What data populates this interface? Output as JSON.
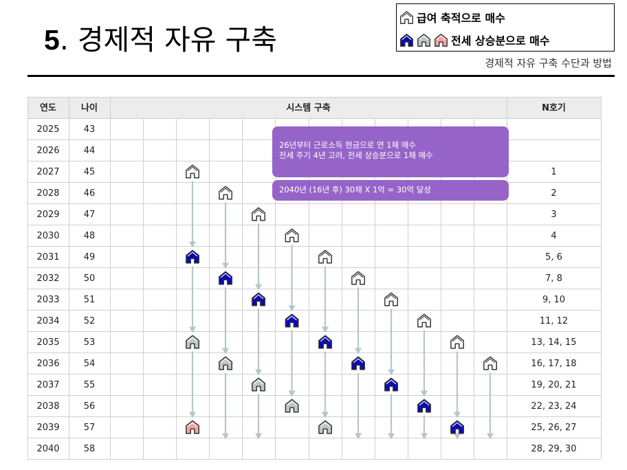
{
  "title": {
    "number": "5",
    "dot": ".",
    "text": " 경제적 자유 구축"
  },
  "subtitle": "경제적 자유 구축 수단과 방법",
  "legend": {
    "row1": {
      "label": "급여 축적으로 매수",
      "icons": [
        "house-outline-icon"
      ]
    },
    "row2": {
      "label": "전세 상승분으로 매수",
      "icons": [
        "house-blue-icon",
        "house-gray-icon",
        "house-pink-icon"
      ]
    }
  },
  "colors": {
    "blue": "#0a0ab4",
    "gray": "#bcc8c8",
    "pink": "#f0a5a5",
    "arrow": "#b5c7c7",
    "grid": "#cfcfcf",
    "header_bg": "#ececec",
    "callout": "#9664c8"
  },
  "table": {
    "headers": {
      "year": "연도",
      "age": "나이",
      "system": "시스템 구축",
      "n": "N호기"
    },
    "rows": [
      {
        "year": "2025",
        "age": "43",
        "n": ""
      },
      {
        "year": "2026",
        "age": "44",
        "n": ""
      },
      {
        "year": "2027",
        "age": "45",
        "n": "1"
      },
      {
        "year": "2028",
        "age": "46",
        "n": "2"
      },
      {
        "year": "2029",
        "age": "47",
        "n": "3"
      },
      {
        "year": "2030",
        "age": "48",
        "n": "4"
      },
      {
        "year": "2031",
        "age": "49",
        "n": "5, 6"
      },
      {
        "year": "2032",
        "age": "50",
        "n": "7, 8"
      },
      {
        "year": "2033",
        "age": "51",
        "n": "9, 10"
      },
      {
        "year": "2034",
        "age": "52",
        "n": "11, 12"
      },
      {
        "year": "2035",
        "age": "53",
        "n": "13, 14, 15"
      },
      {
        "year": "2036",
        "age": "54",
        "n": "16, 17, 18"
      },
      {
        "year": "2037",
        "age": "55",
        "n": "19, 20, 21"
      },
      {
        "year": "2038",
        "age": "56",
        "n": "22, 23, 24"
      },
      {
        "year": "2039",
        "age": "57",
        "n": "25, 26, 27"
      },
      {
        "year": "2040",
        "age": "58",
        "n": "28, 29, 30"
      }
    ]
  },
  "houses": [
    {
      "col": 2,
      "row": 2,
      "type": "outline"
    },
    {
      "col": 3,
      "row": 3,
      "type": "outline"
    },
    {
      "col": 4,
      "row": 4,
      "type": "outline"
    },
    {
      "col": 5,
      "row": 5,
      "type": "outline"
    },
    {
      "col": 2,
      "row": 6,
      "type": "blue"
    },
    {
      "col": 6,
      "row": 6,
      "type": "outline"
    },
    {
      "col": 3,
      "row": 7,
      "type": "blue"
    },
    {
      "col": 7,
      "row": 7,
      "type": "outline"
    },
    {
      "col": 4,
      "row": 8,
      "type": "blue"
    },
    {
      "col": 8,
      "row": 8,
      "type": "outline"
    },
    {
      "col": 5,
      "row": 9,
      "type": "blue"
    },
    {
      "col": 9,
      "row": 9,
      "type": "outline"
    },
    {
      "col": 2,
      "row": 10,
      "type": "gray"
    },
    {
      "col": 6,
      "row": 10,
      "type": "blue"
    },
    {
      "col": 10,
      "row": 10,
      "type": "outline"
    },
    {
      "col": 3,
      "row": 11,
      "type": "gray"
    },
    {
      "col": 7,
      "row": 11,
      "type": "blue"
    },
    {
      "col": 11,
      "row": 11,
      "type": "outline"
    },
    {
      "col": 4,
      "row": 12,
      "type": "gray"
    },
    {
      "col": 8,
      "row": 12,
      "type": "blue"
    },
    {
      "col": 5,
      "row": 13,
      "type": "gray"
    },
    {
      "col": 9,
      "row": 13,
      "type": "blue"
    },
    {
      "col": 2,
      "row": 14,
      "type": "pink"
    },
    {
      "col": 6,
      "row": 14,
      "type": "gray"
    },
    {
      "col": 10,
      "row": 14,
      "type": "blue"
    }
  ],
  "arrows": [
    {
      "col": 2,
      "from_row": 2,
      "to_row": 6
    },
    {
      "col": 2,
      "from_row": 6,
      "to_row": 10
    },
    {
      "col": 2,
      "from_row": 10,
      "to_row": 14
    },
    {
      "col": 3,
      "from_row": 3,
      "to_row": 7
    },
    {
      "col": 3,
      "from_row": 7,
      "to_row": 11
    },
    {
      "col": 3,
      "from_row": 11,
      "to_row": 15
    },
    {
      "col": 4,
      "from_row": 4,
      "to_row": 8
    },
    {
      "col": 4,
      "from_row": 8,
      "to_row": 12
    },
    {
      "col": 4,
      "from_row": 12,
      "to_row": 15
    },
    {
      "col": 5,
      "from_row": 5,
      "to_row": 9
    },
    {
      "col": 5,
      "from_row": 9,
      "to_row": 13
    },
    {
      "col": 6,
      "from_row": 6,
      "to_row": 10
    },
    {
      "col": 6,
      "from_row": 10,
      "to_row": 14
    },
    {
      "col": 7,
      "from_row": 7,
      "to_row": 11
    },
    {
      "col": 7,
      "from_row": 11,
      "to_row": 15
    },
    {
      "col": 8,
      "from_row": 8,
      "to_row": 12
    },
    {
      "col": 8,
      "from_row": 12,
      "to_row": 15
    },
    {
      "col": 9,
      "from_row": 9,
      "to_row": 13
    },
    {
      "col": 9,
      "from_row": 13,
      "to_row": 15
    },
    {
      "col": 10,
      "from_row": 10,
      "to_row": 14
    },
    {
      "col": 10,
      "from_row": 14,
      "to_row": 15
    },
    {
      "col": 11,
      "from_row": 11,
      "to_row": 15
    }
  ],
  "callouts": [
    {
      "line1": "26년부터 근로소득 현금으로 연 1채 매수",
      "line2": "전세 주기 4년 고려, 전세 상승분으로 1채 매수"
    },
    {
      "line1": "2040년 (16년  후) 30채 X 1억 = 30억 달성"
    }
  ]
}
